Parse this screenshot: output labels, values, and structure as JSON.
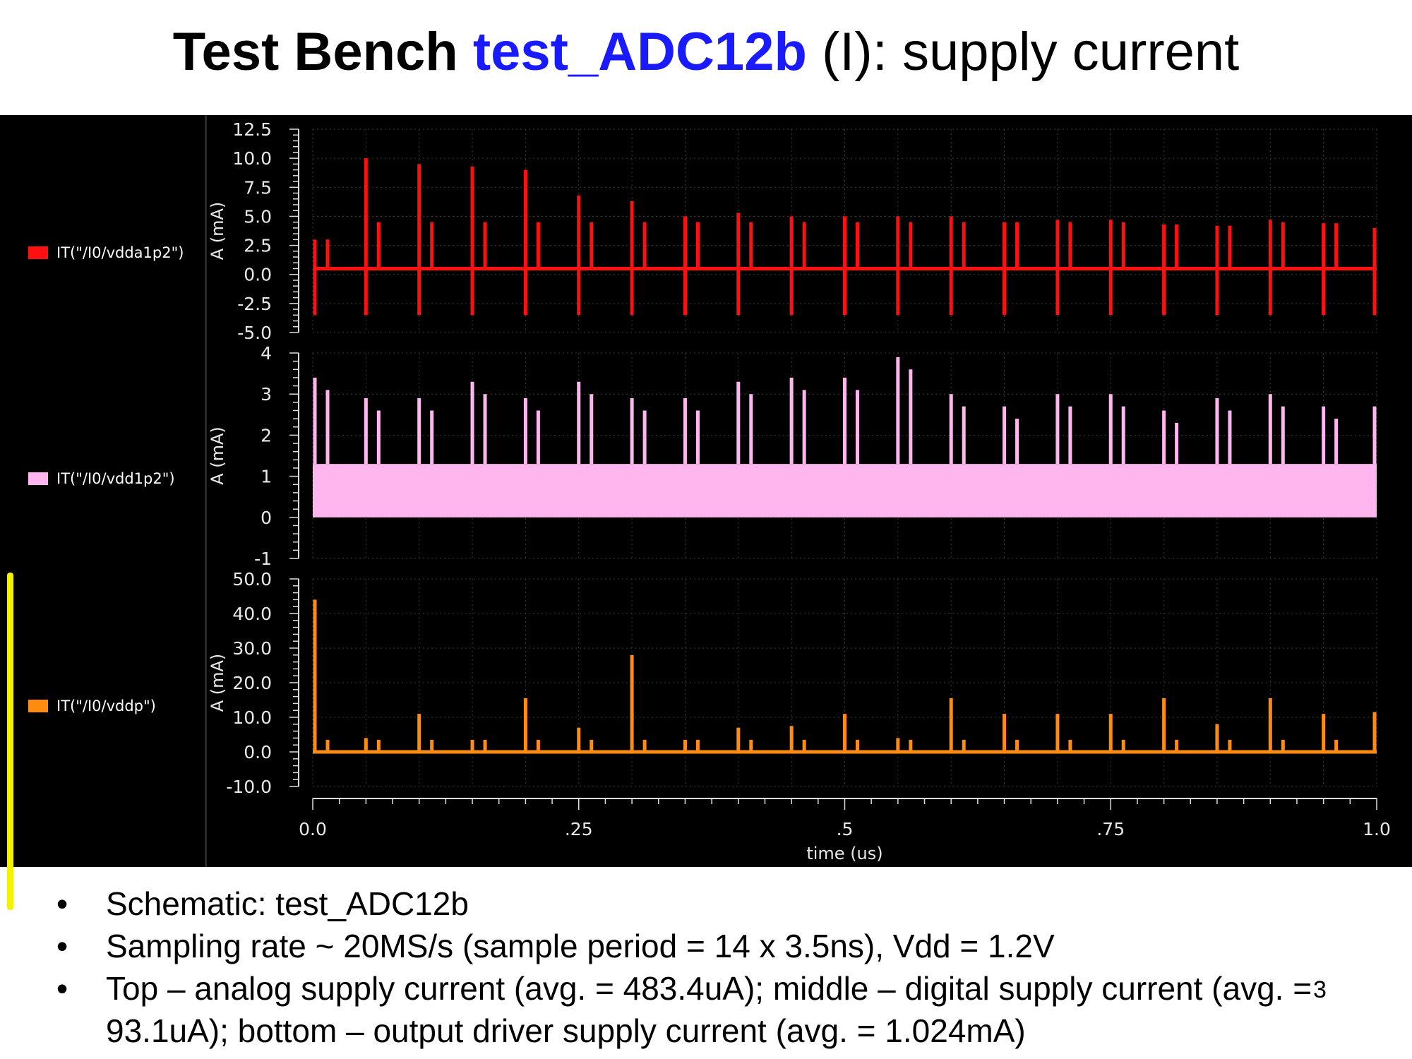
{
  "title": {
    "prefix": "Test Bench",
    "name": "test_ADC12b",
    "suffix": "(I): supply current"
  },
  "colors": {
    "trace_top": "#ff1010",
    "trace_middle": "#ffb6ee",
    "trace_bottom": "#ff8c10",
    "title_accent": "#1a1aff",
    "selection_bar": "#f2f200"
  },
  "legend": [
    {
      "label": "IT(\"/I0/vdda1p2\")",
      "color": "#ff1010"
    },
    {
      "label": "IT(\"/I0/vdd1p2\")",
      "color": "#ffb6ee"
    },
    {
      "label": "IT(\"/I0/vddp\")",
      "color": "#ff8c10"
    }
  ],
  "chart_data": [
    {
      "type": "line",
      "series": [
        {
          "name": "IT(\"/I0/vdda1p2\")"
        }
      ],
      "xlabel": "time (us)",
      "ylabel": "A (mA)",
      "xlim": [
        0,
        1.0
      ],
      "ylim": [
        -5.0,
        12.5
      ],
      "yticks": [
        "12.5",
        "10.0",
        "7.5",
        "5.0",
        "2.5",
        "0.0",
        "-2.5",
        "-5.0"
      ],
      "baseline": 0.5,
      "spike_times": [
        0.0,
        0.05,
        0.1,
        0.15,
        0.2,
        0.25,
        0.3,
        0.35,
        0.4,
        0.45,
        0.5,
        0.55,
        0.6,
        0.65,
        0.7,
        0.75,
        0.8,
        0.85,
        0.9,
        0.95,
        1.0
      ],
      "spike_peaks": [
        3.0,
        10.0,
        9.5,
        9.3,
        9.0,
        6.8,
        6.3,
        5.0,
        5.3,
        5.0,
        5.0,
        5.0,
        5.0,
        4.5,
        4.7,
        4.7,
        4.3,
        4.2,
        4.7,
        4.4,
        4.0
      ],
      "grid": true
    },
    {
      "type": "area",
      "series": [
        {
          "name": "IT(\"/I0/vdd1p2\")"
        }
      ],
      "xlabel": "time (us)",
      "ylabel": "A (mA)",
      "xlim": [
        0,
        1.0
      ],
      "ylim": [
        -1,
        4
      ],
      "yticks": [
        "4",
        "3",
        "2",
        "1",
        "0",
        "-1"
      ],
      "band": [
        0.0,
        1.3
      ],
      "spike_times": [
        0.0,
        0.05,
        0.1,
        0.15,
        0.2,
        0.25,
        0.3,
        0.35,
        0.4,
        0.45,
        0.5,
        0.55,
        0.6,
        0.65,
        0.7,
        0.75,
        0.8,
        0.85,
        0.9,
        0.95,
        1.0
      ],
      "spike_peaks": [
        3.4,
        2.9,
        2.9,
        3.3,
        2.9,
        3.3,
        2.9,
        2.9,
        3.3,
        3.4,
        3.4,
        3.9,
        3.0,
        2.7,
        3.0,
        3.0,
        2.6,
        2.9,
        3.0,
        2.7,
        2.7
      ],
      "grid": true
    },
    {
      "type": "line",
      "series": [
        {
          "name": "IT(\"/I0/vddp\")"
        }
      ],
      "xlabel": "time (us)",
      "ylabel": "A (mA)",
      "xlim": [
        0,
        1.0
      ],
      "ylim": [
        -10.0,
        50.0
      ],
      "yticks": [
        "50.0",
        "40.0",
        "30.0",
        "20.0",
        "10.0",
        "0.0",
        "-10.0"
      ],
      "xticks": [
        "0.0",
        ".25",
        ".5",
        ".75",
        "1.0"
      ],
      "baseline": 0.0,
      "spike_times": [
        0.0,
        0.05,
        0.1,
        0.15,
        0.2,
        0.25,
        0.3,
        0.35,
        0.4,
        0.45,
        0.5,
        0.55,
        0.6,
        0.65,
        0.7,
        0.75,
        0.8,
        0.85,
        0.9,
        0.95,
        1.0
      ],
      "spike_peaks": [
        44.0,
        4.0,
        11.0,
        3.5,
        15.5,
        7.0,
        28.0,
        3.5,
        7.0,
        7.5,
        11.0,
        4.0,
        15.5,
        11.0,
        11.0,
        11.0,
        15.5,
        8.0,
        15.5,
        11.0,
        11.5
      ],
      "grid": true
    }
  ],
  "bullets": [
    "Schematic: test_ADC12b",
    "Sampling rate ~ 20MS/s (sample period = 14 x 3.5ns), Vdd = 1.2V",
    "Top – analog supply current (avg. = 483.4uA); middle – digital supply current (avg. = 93.1uA); bottom – output driver supply current (avg. = 1.024mA)"
  ],
  "page_number": "3"
}
